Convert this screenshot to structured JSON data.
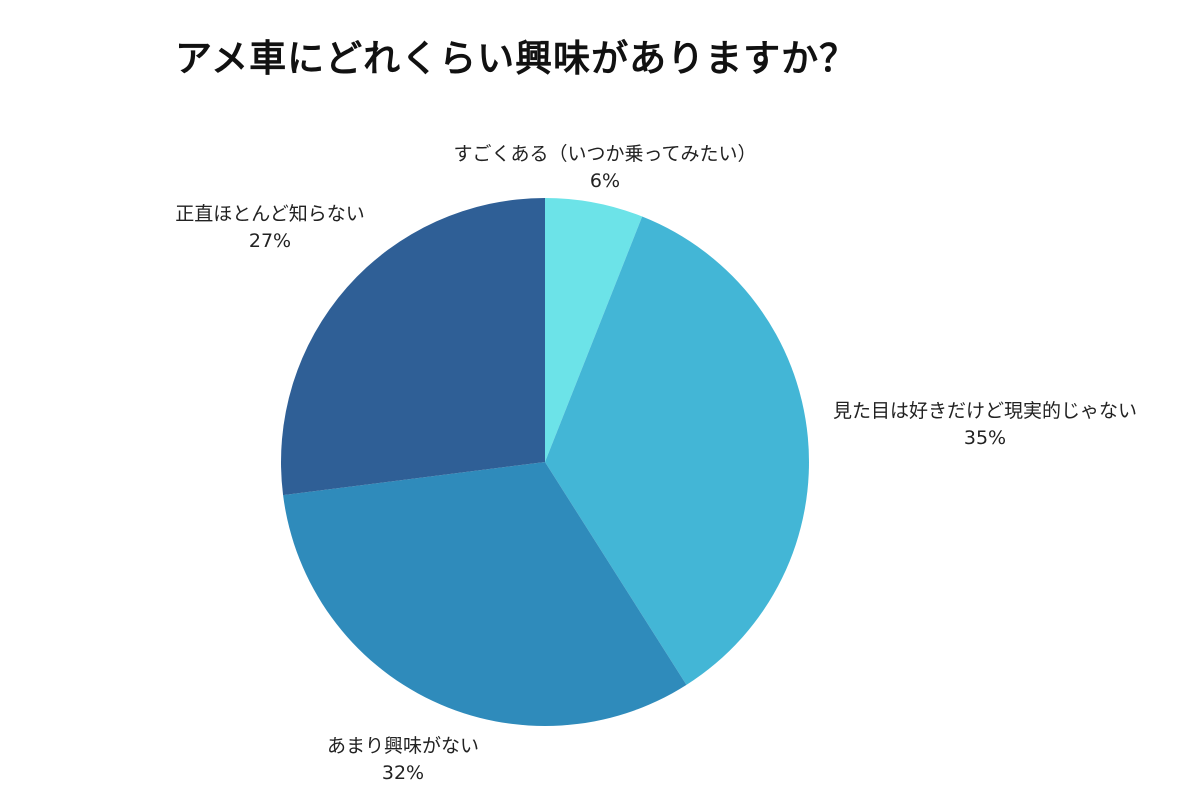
{
  "chart_data": {
    "type": "pie",
    "title": "アメ車にどれくらい興味がありますか？",
    "start_angle_deg": 0,
    "direction": "clockwise",
    "legend": "none",
    "slices": [
      {
        "label": "すごくある（いつか乗ってみたい）",
        "value": 6,
        "value_label": "6%",
        "color": "#6ce3e8"
      },
      {
        "label": "見た目は好きだけど現実的じゃない",
        "value": 35,
        "value_label": "35%",
        "color": "#43b6d6"
      },
      {
        "label": "あまり興味がない",
        "value": 32,
        "value_label": "32%",
        "color": "#2f8bbb"
      },
      {
        "label": "正直ほとんど知らない",
        "value": 27,
        "value_label": "27%",
        "color": "#2f5f96"
      }
    ]
  }
}
